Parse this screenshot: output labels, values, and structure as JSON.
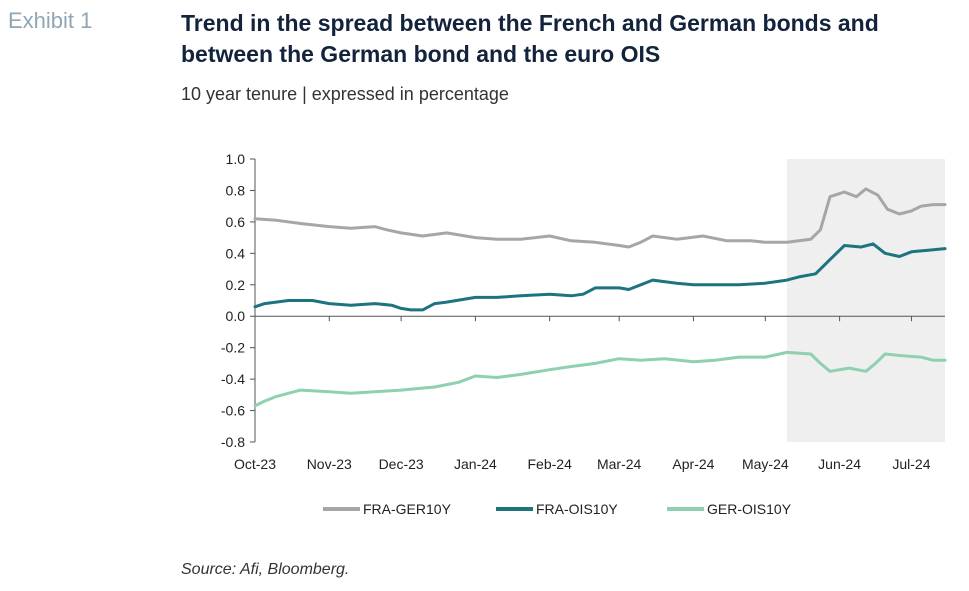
{
  "header": {
    "exhibit": "Exhibit 1",
    "title": "Trend in the spread between the French and German bonds and between the German bond and the euro OIS",
    "subtitle": "10 year tenure | expressed in percentage"
  },
  "footer": {
    "source": "Source: Afi, Bloomberg."
  },
  "chart_data": {
    "type": "line",
    "title": "Trend in the spread between the French and German bonds and between the German bond and the euro OIS",
    "subtitle": "10 year tenure | expressed in percentage",
    "xlabel": "",
    "ylabel": "",
    "ylim": [
      -0.8,
      1.0
    ],
    "yticks": [
      1.0,
      0.8,
      0.6,
      0.4,
      0.2,
      0.0,
      -0.2,
      -0.4,
      -0.6,
      -0.8
    ],
    "ytick_labels": [
      "1.0",
      "0.8",
      "0.6",
      "0.4",
      "0.2",
      "0.0",
      "-0.2",
      "-0.4",
      "-0.6",
      "-0.8"
    ],
    "xlim": [
      "2023-10-01",
      "2024-07-15"
    ],
    "x_ticks": [
      {
        "date": "2023-10-01",
        "label": "Oct-23"
      },
      {
        "date": "2023-11-01",
        "label": "Nov-23"
      },
      {
        "date": "2023-12-01",
        "label": "Dec-23"
      },
      {
        "date": "2024-01-01",
        "label": "Jan-24"
      },
      {
        "date": "2024-02-01",
        "label": "Feb-24"
      },
      {
        "date": "2024-03-01",
        "label": "Mar-24"
      },
      {
        "date": "2024-04-01",
        "label": "Apr-24"
      },
      {
        "date": "2024-05-01",
        "label": "May-24"
      },
      {
        "date": "2024-06-01",
        "label": "Jun-24"
      },
      {
        "date": "2024-07-01",
        "label": "Jul-24"
      }
    ],
    "shaded_region": {
      "from": "2024-05-10",
      "to": "2024-07-15",
      "color": "#efefef"
    },
    "legend": {
      "position": "bottom"
    },
    "grid": false,
    "series": [
      {
        "name": "FRA-GER10Y",
        "color": "#a6a6a6",
        "points": [
          [
            "2023-10-01",
            0.62
          ],
          [
            "2023-10-10",
            0.61
          ],
          [
            "2023-10-20",
            0.59
          ],
          [
            "2023-11-01",
            0.57
          ],
          [
            "2023-11-10",
            0.56
          ],
          [
            "2023-11-20",
            0.57
          ],
          [
            "2023-11-25",
            0.55
          ],
          [
            "2023-12-01",
            0.53
          ],
          [
            "2023-12-10",
            0.51
          ],
          [
            "2023-12-20",
            0.53
          ],
          [
            "2024-01-01",
            0.5
          ],
          [
            "2024-01-10",
            0.49
          ],
          [
            "2024-01-20",
            0.49
          ],
          [
            "2024-02-01",
            0.51
          ],
          [
            "2024-02-10",
            0.48
          ],
          [
            "2024-02-20",
            0.47
          ],
          [
            "2024-03-01",
            0.45
          ],
          [
            "2024-03-05",
            0.44
          ],
          [
            "2024-03-10",
            0.47
          ],
          [
            "2024-03-15",
            0.51
          ],
          [
            "2024-03-25",
            0.49
          ],
          [
            "2024-04-05",
            0.51
          ],
          [
            "2024-04-15",
            0.48
          ],
          [
            "2024-04-25",
            0.48
          ],
          [
            "2024-05-01",
            0.47
          ],
          [
            "2024-05-10",
            0.47
          ],
          [
            "2024-05-20",
            0.49
          ],
          [
            "2024-05-24",
            0.55
          ],
          [
            "2024-05-28",
            0.76
          ],
          [
            "2024-06-03",
            0.79
          ],
          [
            "2024-06-08",
            0.76
          ],
          [
            "2024-06-12",
            0.81
          ],
          [
            "2024-06-17",
            0.77
          ],
          [
            "2024-06-21",
            0.68
          ],
          [
            "2024-06-26",
            0.65
          ],
          [
            "2024-07-01",
            0.67
          ],
          [
            "2024-07-05",
            0.7
          ],
          [
            "2024-07-10",
            0.71
          ],
          [
            "2024-07-15",
            0.71
          ]
        ]
      },
      {
        "name": "FRA-OIS10Y",
        "color": "#1d737f",
        "points": [
          [
            "2023-10-01",
            0.06
          ],
          [
            "2023-10-05",
            0.08
          ],
          [
            "2023-10-15",
            0.1
          ],
          [
            "2023-10-25",
            0.1
          ],
          [
            "2023-11-01",
            0.08
          ],
          [
            "2023-11-10",
            0.07
          ],
          [
            "2023-11-20",
            0.08
          ],
          [
            "2023-11-27",
            0.07
          ],
          [
            "2023-12-01",
            0.05
          ],
          [
            "2023-12-05",
            0.04
          ],
          [
            "2023-12-10",
            0.04
          ],
          [
            "2023-12-15",
            0.08
          ],
          [
            "2023-12-20",
            0.09
          ],
          [
            "2024-01-01",
            0.12
          ],
          [
            "2024-01-10",
            0.12
          ],
          [
            "2024-01-20",
            0.13
          ],
          [
            "2024-02-01",
            0.14
          ],
          [
            "2024-02-10",
            0.13
          ],
          [
            "2024-02-15",
            0.14
          ],
          [
            "2024-02-20",
            0.18
          ],
          [
            "2024-03-01",
            0.18
          ],
          [
            "2024-03-05",
            0.17
          ],
          [
            "2024-03-10",
            0.2
          ],
          [
            "2024-03-15",
            0.23
          ],
          [
            "2024-03-25",
            0.21
          ],
          [
            "2024-04-01",
            0.2
          ],
          [
            "2024-04-10",
            0.2
          ],
          [
            "2024-04-20",
            0.2
          ],
          [
            "2024-05-01",
            0.21
          ],
          [
            "2024-05-10",
            0.23
          ],
          [
            "2024-05-15",
            0.25
          ],
          [
            "2024-05-22",
            0.27
          ],
          [
            "2024-05-28",
            0.36
          ],
          [
            "2024-06-03",
            0.45
          ],
          [
            "2024-06-10",
            0.44
          ],
          [
            "2024-06-15",
            0.46
          ],
          [
            "2024-06-20",
            0.4
          ],
          [
            "2024-06-26",
            0.38
          ],
          [
            "2024-07-01",
            0.41
          ],
          [
            "2024-07-08",
            0.42
          ],
          [
            "2024-07-15",
            0.43
          ]
        ]
      },
      {
        "name": "GER-OIS10Y",
        "color": "#8fd0b0",
        "points": [
          [
            "2023-10-01",
            -0.57
          ],
          [
            "2023-10-05",
            -0.54
          ],
          [
            "2023-10-10",
            -0.51
          ],
          [
            "2023-10-20",
            -0.47
          ],
          [
            "2023-11-01",
            -0.48
          ],
          [
            "2023-11-10",
            -0.49
          ],
          [
            "2023-11-20",
            -0.48
          ],
          [
            "2023-12-01",
            -0.47
          ],
          [
            "2023-12-15",
            -0.45
          ],
          [
            "2023-12-25",
            -0.42
          ],
          [
            "2024-01-01",
            -0.38
          ],
          [
            "2024-01-10",
            -0.39
          ],
          [
            "2024-01-20",
            -0.37
          ],
          [
            "2024-02-01",
            -0.34
          ],
          [
            "2024-02-10",
            -0.32
          ],
          [
            "2024-02-20",
            -0.3
          ],
          [
            "2024-03-01",
            -0.27
          ],
          [
            "2024-03-10",
            -0.28
          ],
          [
            "2024-03-20",
            -0.27
          ],
          [
            "2024-04-01",
            -0.29
          ],
          [
            "2024-04-10",
            -0.28
          ],
          [
            "2024-04-20",
            -0.26
          ],
          [
            "2024-05-01",
            -0.26
          ],
          [
            "2024-05-10",
            -0.23
          ],
          [
            "2024-05-20",
            -0.24
          ],
          [
            "2024-05-24",
            -0.3
          ],
          [
            "2024-05-28",
            -0.35
          ],
          [
            "2024-06-05",
            -0.33
          ],
          [
            "2024-06-12",
            -0.35
          ],
          [
            "2024-06-16",
            -0.3
          ],
          [
            "2024-06-20",
            -0.24
          ],
          [
            "2024-06-26",
            -0.25
          ],
          [
            "2024-07-05",
            -0.26
          ],
          [
            "2024-07-10",
            -0.28
          ],
          [
            "2024-07-15",
            -0.28
          ]
        ]
      }
    ]
  }
}
